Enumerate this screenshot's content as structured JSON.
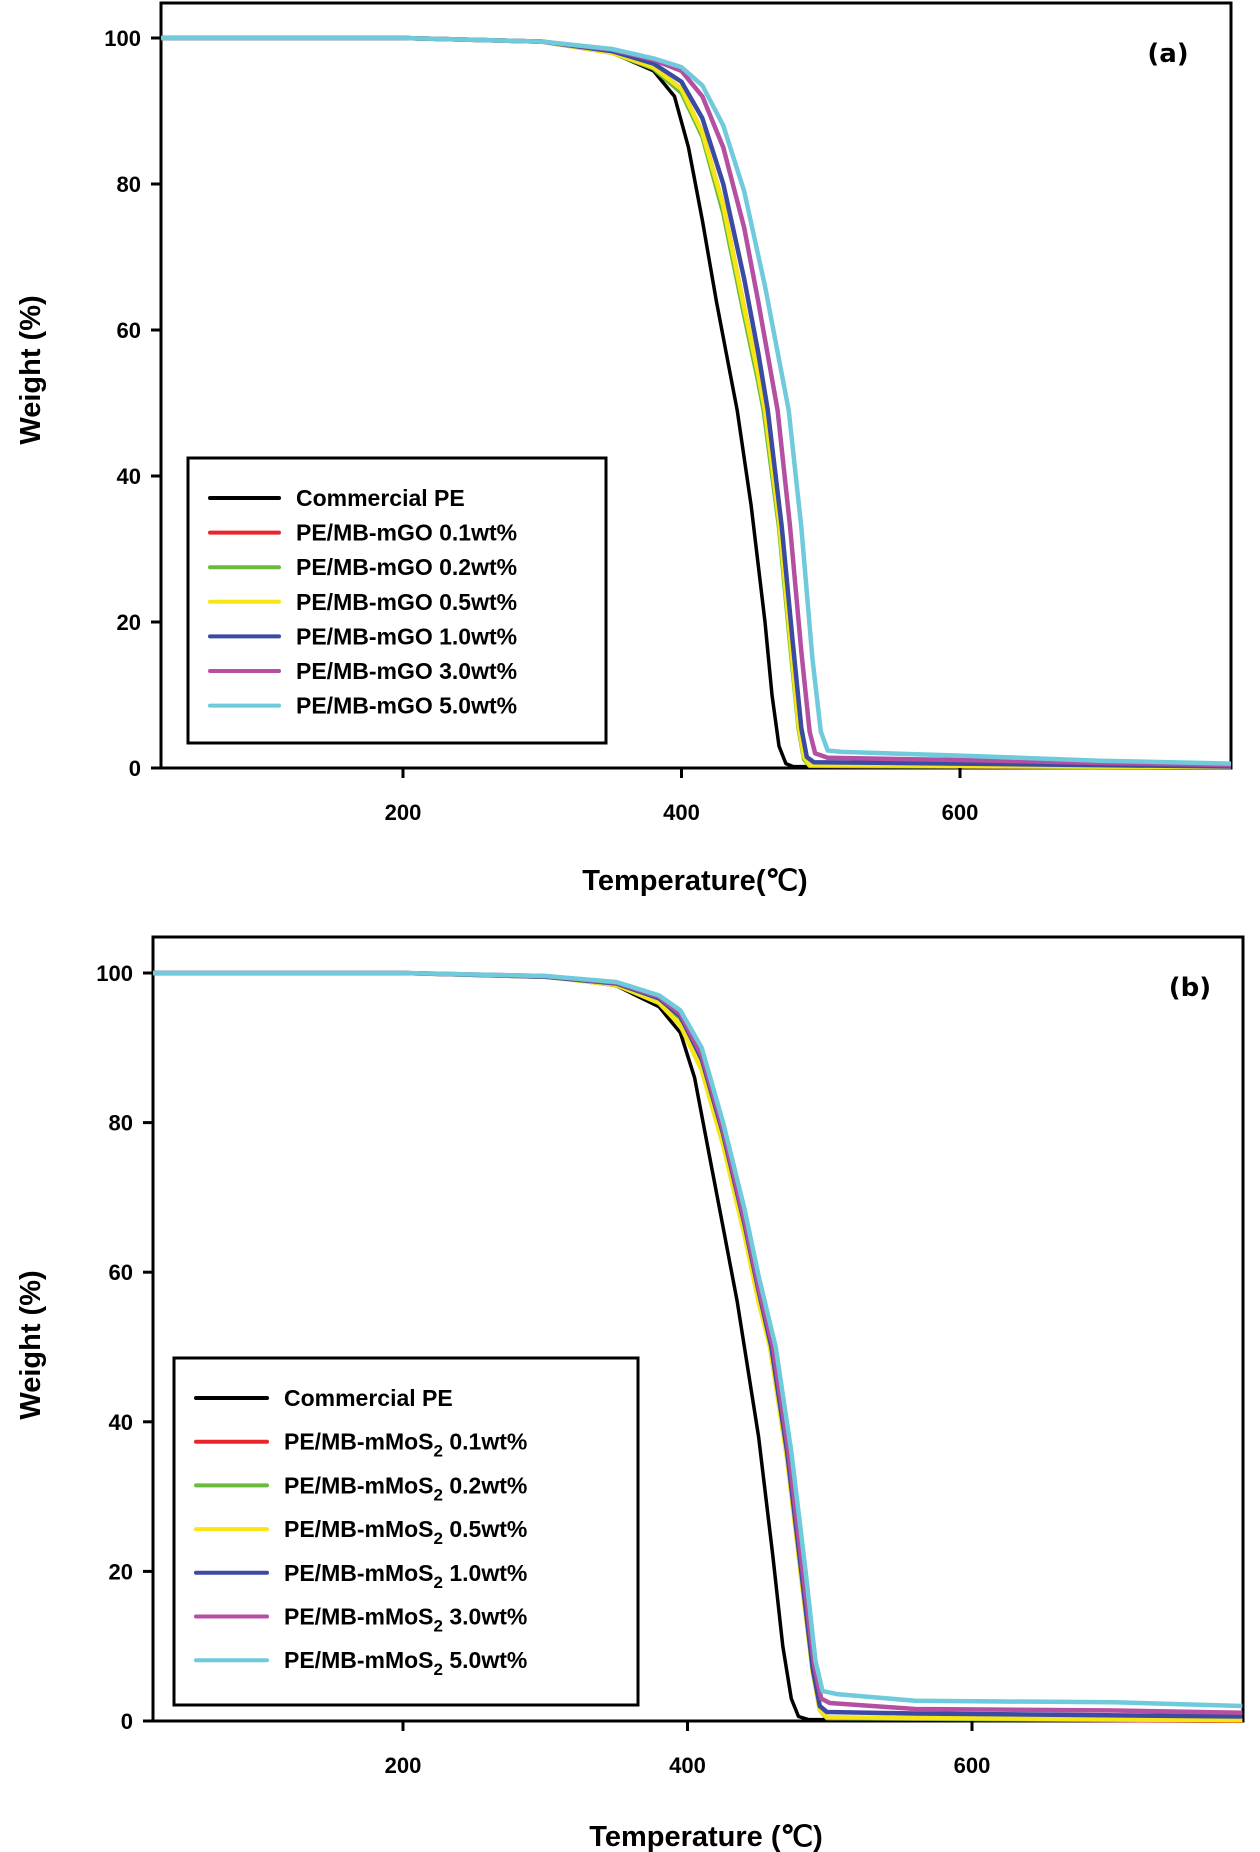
{
  "chart_data": [
    {
      "type": "line",
      "panel_label": "(a)",
      "title": "",
      "xlabel": "Temperature(℃)",
      "ylabel": "Weight (%)",
      "xlim": [
        25,
        795
      ],
      "ylim": [
        -0.5,
        105
      ],
      "xticks": [
        200,
        400,
        600
      ],
      "yticks": [
        0,
        20,
        40,
        60,
        80,
        100
      ],
      "grid": false,
      "legend_position": "bottom-left",
      "series": [
        {
          "name": "Commercial PE",
          "color": "#000000",
          "points": [
            [
              25,
              100
            ],
            [
              200,
              100
            ],
            [
              300,
              99.5
            ],
            [
              350,
              98
            ],
            [
              380,
              95.5
            ],
            [
              395,
              92
            ],
            [
              405,
              85
            ],
            [
              415,
              75
            ],
            [
              425,
              64
            ],
            [
              435,
              54
            ],
            [
              440,
              49
            ],
            [
              450,
              36
            ],
            [
              460,
              20
            ],
            [
              465,
              10
            ],
            [
              470,
              3
            ],
            [
              475,
              0.6
            ],
            [
              480,
              0.2
            ],
            [
              795,
              0
            ]
          ]
        },
        {
          "name": "PE/MB-mGO 0.1wt%",
          "color": "#e8262a",
          "subscript": "",
          "points": [
            [
              25,
              100
            ],
            [
              200,
              100
            ],
            [
              300,
              99.5
            ],
            [
              350,
              98
            ],
            [
              380,
              96
            ],
            [
              400,
              93
            ],
            [
              415,
              87
            ],
            [
              430,
              77
            ],
            [
              445,
              63
            ],
            [
              455,
              54
            ],
            [
              460,
              49
            ],
            [
              470,
              34
            ],
            [
              478,
              18
            ],
            [
              484,
              6
            ],
            [
              488,
              1.5
            ],
            [
              492,
              0.3
            ],
            [
              795,
              0
            ]
          ]
        },
        {
          "name": "PE/MB-mGO 0.2wt%",
          "color": "#6abb3c",
          "points": [
            [
              25,
              100
            ],
            [
              200,
              100
            ],
            [
              300,
              99.5
            ],
            [
              350,
              98
            ],
            [
              380,
              95.8
            ],
            [
              400,
              92.5
            ],
            [
              415,
              86.5
            ],
            [
              430,
              76
            ],
            [
              445,
              62
            ],
            [
              455,
              53
            ],
            [
              459,
              49
            ],
            [
              470,
              33
            ],
            [
              478,
              17
            ],
            [
              484,
              5.5
            ],
            [
              488,
              1.2
            ],
            [
              492,
              0.3
            ],
            [
              795,
              0.1
            ]
          ]
        },
        {
          "name": "PE/MB-mGO 0.5wt%",
          "color": "#f5e614",
          "points": [
            [
              25,
              100
            ],
            [
              200,
              100
            ],
            [
              300,
              99.5
            ],
            [
              350,
              98
            ],
            [
              380,
              96
            ],
            [
              400,
              93
            ],
            [
              415,
              87
            ],
            [
              430,
              77
            ],
            [
              445,
              63
            ],
            [
              455,
              54
            ],
            [
              460,
              49
            ],
            [
              470,
              34
            ],
            [
              478,
              18
            ],
            [
              484,
              6
            ],
            [
              488,
              1.5
            ],
            [
              492,
              0.4
            ],
            [
              795,
              0.1
            ]
          ]
        },
        {
          "name": "PE/MB-mGO 1.0wt%",
          "color": "#3b4ba3",
          "points": [
            [
              25,
              100
            ],
            [
              200,
              100
            ],
            [
              300,
              99.5
            ],
            [
              350,
              98.2
            ],
            [
              380,
              96.5
            ],
            [
              400,
              94
            ],
            [
              415,
              89
            ],
            [
              430,
              80
            ],
            [
              445,
              67
            ],
            [
              455,
              57
            ],
            [
              462,
              49
            ],
            [
              472,
              33
            ],
            [
              480,
              17
            ],
            [
              486,
              5.5
            ],
            [
              490,
              1.5
            ],
            [
              495,
              0.8
            ],
            [
              600,
              0.6
            ],
            [
              795,
              0.2
            ]
          ]
        },
        {
          "name": "PE/MB-mGO 3.0wt%",
          "color": "#b44fa1",
          "points": [
            [
              25,
              100
            ],
            [
              200,
              100
            ],
            [
              300,
              99.5
            ],
            [
              350,
              98.4
            ],
            [
              380,
              97
            ],
            [
              400,
              95.5
            ],
            [
              415,
              92
            ],
            [
              430,
              85
            ],
            [
              445,
              74
            ],
            [
              455,
              64
            ],
            [
              469,
              49
            ],
            [
              478,
              33
            ],
            [
              486,
              16
            ],
            [
              492,
              5
            ],
            [
              496,
              2
            ],
            [
              505,
              1.4
            ],
            [
              600,
              1.1
            ],
            [
              700,
              0.7
            ],
            [
              795,
              0.4
            ]
          ]
        },
        {
          "name": "PE/MB-mGO 5.0wt%",
          "color": "#6fcadb",
          "points": [
            [
              25,
              100
            ],
            [
              200,
              100
            ],
            [
              300,
              99.5
            ],
            [
              350,
              98.5
            ],
            [
              380,
              97.2
            ],
            [
              400,
              96
            ],
            [
              415,
              93.5
            ],
            [
              430,
              88
            ],
            [
              445,
              79
            ],
            [
              460,
              66
            ],
            [
              477,
              49
            ],
            [
              486,
              33
            ],
            [
              494,
              15
            ],
            [
              500,
              5
            ],
            [
              505,
              2.4
            ],
            [
              515,
              2.2
            ],
            [
              600,
              1.7
            ],
            [
              700,
              1.0
            ],
            [
              795,
              0.6
            ]
          ]
        }
      ]
    },
    {
      "type": "line",
      "panel_label": "(b)",
      "title": "",
      "xlabel": "Temperature (℃)",
      "ylabel": "Weight (%)",
      "xlim": [
        24,
        790
      ],
      "ylim": [
        0,
        105
      ],
      "xticks": [
        200,
        400,
        600
      ],
      "yticks": [
        0,
        20,
        40,
        60,
        80,
        100
      ],
      "grid": false,
      "legend_position": "bottom-left",
      "series": [
        {
          "name": "Commercial PE",
          "color": "#000000",
          "points": [
            [
              24,
              100
            ],
            [
              200,
              100
            ],
            [
              300,
              99.5
            ],
            [
              350,
              98.3
            ],
            [
              380,
              95.5
            ],
            [
              395,
              92
            ],
            [
              405,
              86
            ],
            [
              415,
              76
            ],
            [
              425,
              66
            ],
            [
              435,
              56
            ],
            [
              440,
              50
            ],
            [
              450,
              38
            ],
            [
              460,
              22
            ],
            [
              467,
              10
            ],
            [
              473,
              3
            ],
            [
              478,
              0.6
            ],
            [
              485,
              0.2
            ],
            [
              790,
              0
            ]
          ]
        },
        {
          "name": "PE/MB-mMoS2 0.1wt%",
          "color": "#e8262a",
          "points": [
            [
              24,
              100
            ],
            [
              200,
              100
            ],
            [
              300,
              99.5
            ],
            [
              350,
              98.6
            ],
            [
              380,
              96.5
            ],
            [
              395,
              94
            ],
            [
              410,
              88
            ],
            [
              425,
              78
            ],
            [
              440,
              66
            ],
            [
              450,
              57
            ],
            [
              459,
              50
            ],
            [
              470,
              36
            ],
            [
              480,
              20
            ],
            [
              488,
              7
            ],
            [
              493,
              1.5
            ],
            [
              498,
              0.4
            ],
            [
              790,
              0
            ]
          ]
        },
        {
          "name": "PE/MB-mMoS2 0.2wt%",
          "color": "#6abb3c",
          "points": [
            [
              24,
              100
            ],
            [
              200,
              100
            ],
            [
              300,
              99.5
            ],
            [
              350,
              98.6
            ],
            [
              380,
              96.5
            ],
            [
              395,
              94
            ],
            [
              410,
              88
            ],
            [
              425,
              78
            ],
            [
              440,
              66
            ],
            [
              450,
              57
            ],
            [
              459,
              50
            ],
            [
              470,
              36
            ],
            [
              480,
              20
            ],
            [
              488,
              7
            ],
            [
              493,
              1.5
            ],
            [
              498,
              0.4
            ],
            [
              790,
              0.1
            ]
          ]
        },
        {
          "name": "PE/MB-mMoS2 0.5wt%",
          "color": "#f5e614",
          "points": [
            [
              24,
              100
            ],
            [
              200,
              100
            ],
            [
              300,
              99.5
            ],
            [
              350,
              98.4
            ],
            [
              380,
              96
            ],
            [
              395,
              93
            ],
            [
              410,
              87
            ],
            [
              425,
              77
            ],
            [
              440,
              65
            ],
            [
              450,
              56
            ],
            [
              458,
              50
            ],
            [
              470,
              35
            ],
            [
              480,
              19
            ],
            [
              488,
              6.5
            ],
            [
              493,
              1.5
            ],
            [
              498,
              0.5
            ],
            [
              790,
              0.1
            ]
          ]
        },
        {
          "name": "PE/MB-mMoS2 1.0wt%",
          "color": "#3b4ba3",
          "points": [
            [
              24,
              100
            ],
            [
              200,
              100
            ],
            [
              300,
              99.5
            ],
            [
              350,
              98.6
            ],
            [
              380,
              96.6
            ],
            [
              395,
              94.2
            ],
            [
              410,
              88.5
            ],
            [
              425,
              78.5
            ],
            [
              440,
              66.5
            ],
            [
              450,
              57.5
            ],
            [
              459,
              50
            ],
            [
              470,
              36
            ],
            [
              480,
              20
            ],
            [
              488,
              7
            ],
            [
              493,
              2
            ],
            [
              498,
              1.2
            ],
            [
              560,
              1.0
            ],
            [
              790,
              0.6
            ]
          ]
        },
        {
          "name": "PE/MB-mMoS2 3.0wt%",
          "color": "#b44fa1",
          "points": [
            [
              24,
              100
            ],
            [
              200,
              100
            ],
            [
              300,
              99.6
            ],
            [
              350,
              98.7
            ],
            [
              380,
              96.8
            ],
            [
              395,
              94.5
            ],
            [
              410,
              89
            ],
            [
              425,
              79
            ],
            [
              440,
              67
            ],
            [
              450,
              58
            ],
            [
              460,
              50
            ],
            [
              471,
              36
            ],
            [
              481,
              20
            ],
            [
              489,
              7.5
            ],
            [
              494,
              3
            ],
            [
              500,
              2.4
            ],
            [
              560,
              1.6
            ],
            [
              700,
              1.4
            ],
            [
              790,
              1.1
            ]
          ]
        },
        {
          "name": "PE/MB-mMoS2 5.0wt%",
          "color": "#6fcadb",
          "points": [
            [
              24,
              100
            ],
            [
              200,
              100
            ],
            [
              300,
              99.6
            ],
            [
              350,
              98.8
            ],
            [
              380,
              97
            ],
            [
              395,
              95
            ],
            [
              410,
              90
            ],
            [
              425,
              80
            ],
            [
              440,
              68.5
            ],
            [
              450,
              59.5
            ],
            [
              462,
              50
            ],
            [
              473,
              36
            ],
            [
              483,
              20
            ],
            [
              490,
              8
            ],
            [
              495,
              4
            ],
            [
              505,
              3.6
            ],
            [
              560,
              2.7
            ],
            [
              700,
              2.5
            ],
            [
              790,
              2.0
            ]
          ]
        }
      ]
    }
  ]
}
